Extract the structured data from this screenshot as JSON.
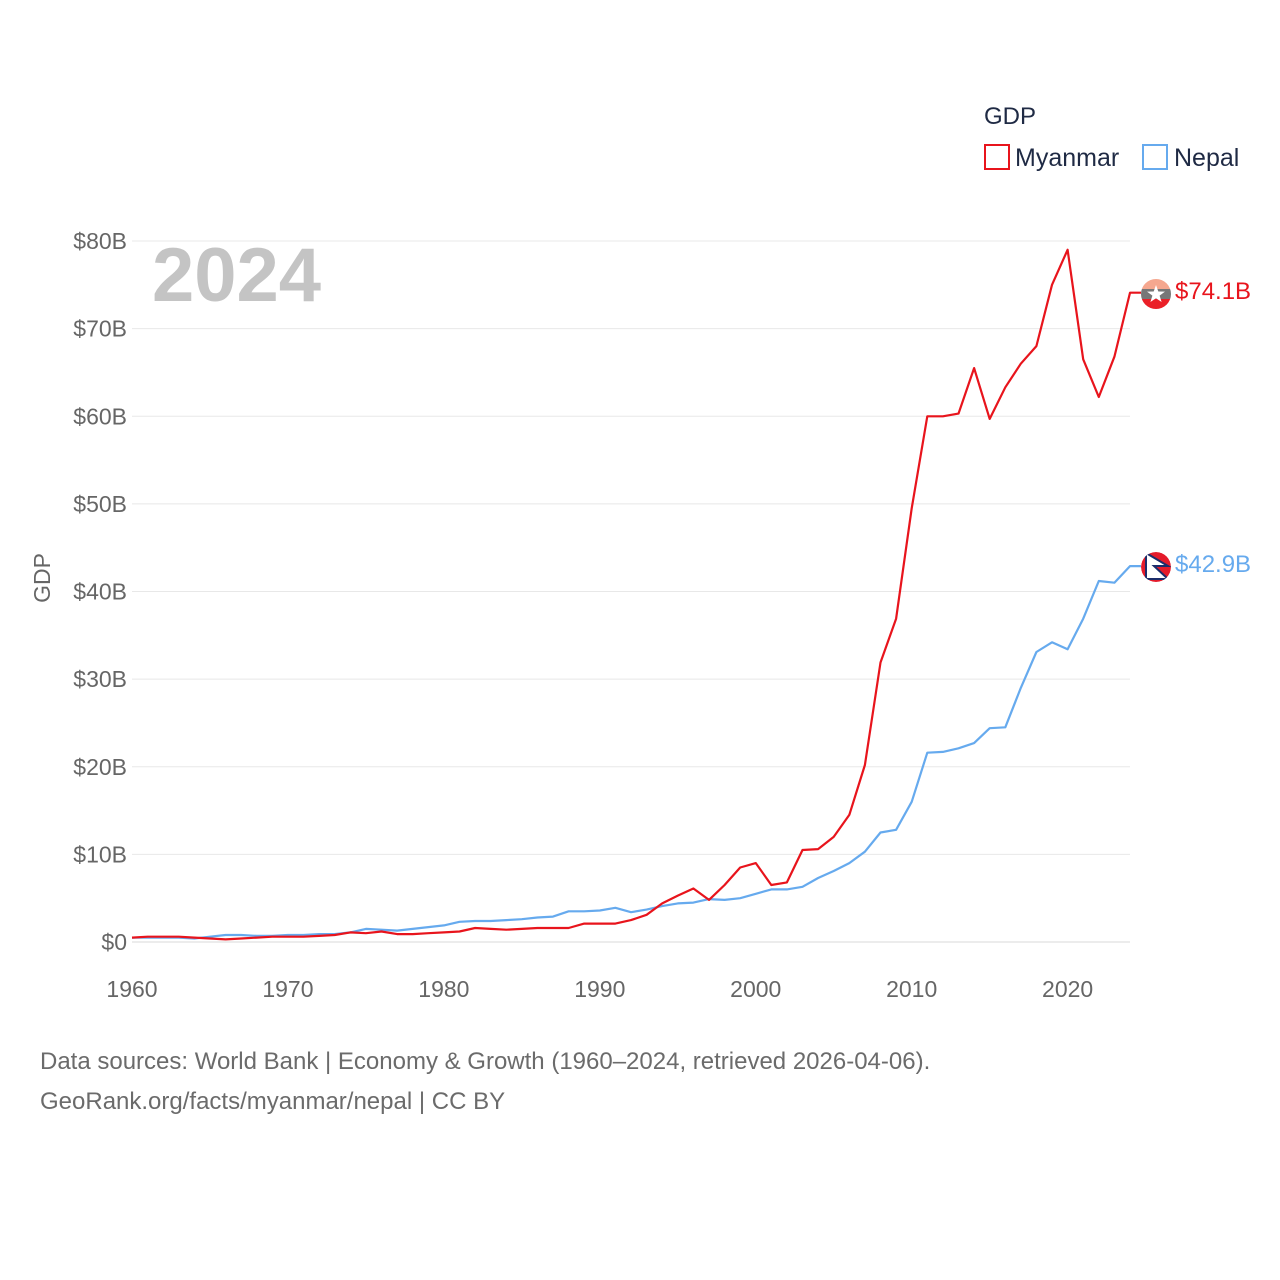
{
  "chart_data": {
    "type": "line",
    "year_label": "2024",
    "ylabel": "GDP",
    "ylim": [
      0,
      80
    ],
    "xlim": [
      1960,
      2024
    ],
    "y_ticks": [
      {
        "value": 0,
        "label": "$0"
      },
      {
        "value": 10,
        "label": "$10B"
      },
      {
        "value": 20,
        "label": "$20B"
      },
      {
        "value": 30,
        "label": "$30B"
      },
      {
        "value": 40,
        "label": "$40B"
      },
      {
        "value": 50,
        "label": "$50B"
      },
      {
        "value": 60,
        "label": "$60B"
      },
      {
        "value": 70,
        "label": "$70B"
      },
      {
        "value": 80,
        "label": "$80B"
      }
    ],
    "x_ticks": [
      {
        "value": 1960,
        "label": "1960"
      },
      {
        "value": 1970,
        "label": "1970"
      },
      {
        "value": 1980,
        "label": "1980"
      },
      {
        "value": 1990,
        "label": "1990"
      },
      {
        "value": 2000,
        "label": "2000"
      },
      {
        "value": 2010,
        "label": "2010"
      },
      {
        "value": 2020,
        "label": "2020"
      }
    ],
    "legend": {
      "title": "GDP",
      "position": "top-right"
    },
    "x": [
      1960,
      1961,
      1962,
      1963,
      1964,
      1965,
      1966,
      1967,
      1968,
      1969,
      1970,
      1971,
      1972,
      1973,
      1974,
      1975,
      1976,
      1977,
      1978,
      1979,
      1980,
      1981,
      1982,
      1983,
      1984,
      1985,
      1986,
      1987,
      1988,
      1989,
      1990,
      1991,
      1992,
      1993,
      1994,
      1995,
      1996,
      1997,
      1998,
      1999,
      2000,
      2001,
      2002,
      2003,
      2004,
      2005,
      2006,
      2007,
      2008,
      2009,
      2010,
      2011,
      2012,
      2013,
      2014,
      2015,
      2016,
      2017,
      2018,
      2019,
      2020,
      2021,
      2022,
      2023,
      2024
    ],
    "series": [
      {
        "name": "Myanmar",
        "color": "#e8141c",
        "end_label": "$74.1B",
        "values": [
          0.5,
          0.6,
          0.6,
          0.6,
          0.5,
          0.4,
          0.3,
          0.4,
          0.5,
          0.6,
          0.6,
          0.6,
          0.7,
          0.8,
          1.1,
          1.0,
          1.2,
          0.9,
          0.9,
          1.0,
          1.1,
          1.2,
          1.6,
          1.5,
          1.4,
          1.5,
          1.6,
          1.6,
          1.6,
          2.1,
          2.1,
          2.1,
          2.5,
          3.1,
          4.4,
          5.3,
          6.1,
          4.8,
          6.5,
          8.5,
          9.0,
          6.5,
          6.8,
          10.5,
          10.6,
          12.0,
          14.5,
          20.2,
          31.9,
          36.9,
          49.5,
          60.0,
          60.0,
          60.3,
          65.5,
          59.7,
          63.3,
          66.0,
          68.0,
          75.0,
          79.0,
          66.5,
          62.2,
          66.8,
          74.1
        ]
      },
      {
        "name": "Nepal",
        "color": "#66aaee",
        "end_label": "$42.9B",
        "values": [
          0.5,
          0.5,
          0.5,
          0.5,
          0.4,
          0.6,
          0.8,
          0.8,
          0.7,
          0.7,
          0.8,
          0.8,
          0.9,
          0.9,
          1.1,
          1.5,
          1.4,
          1.3,
          1.5,
          1.7,
          1.9,
          2.3,
          2.4,
          2.4,
          2.5,
          2.6,
          2.8,
          2.9,
          3.5,
          3.5,
          3.6,
          3.9,
          3.4,
          3.7,
          4.1,
          4.4,
          4.5,
          4.9,
          4.8,
          5.0,
          5.5,
          6.0,
          6.0,
          6.3,
          7.3,
          8.1,
          9.0,
          10.3,
          12.5,
          12.8,
          16.0,
          21.6,
          21.7,
          22.1,
          22.7,
          24.4,
          24.5,
          29.0,
          33.1,
          34.2,
          33.4,
          36.9,
          41.2,
          41.0,
          42.9
        ]
      }
    ]
  },
  "footer": {
    "line1": "Data sources: World Bank | Economy & Growth (1960–2024, retrieved 2026-04-06).",
    "line2": "GeoRank.org/facts/myanmar/nepal | CC BY"
  }
}
